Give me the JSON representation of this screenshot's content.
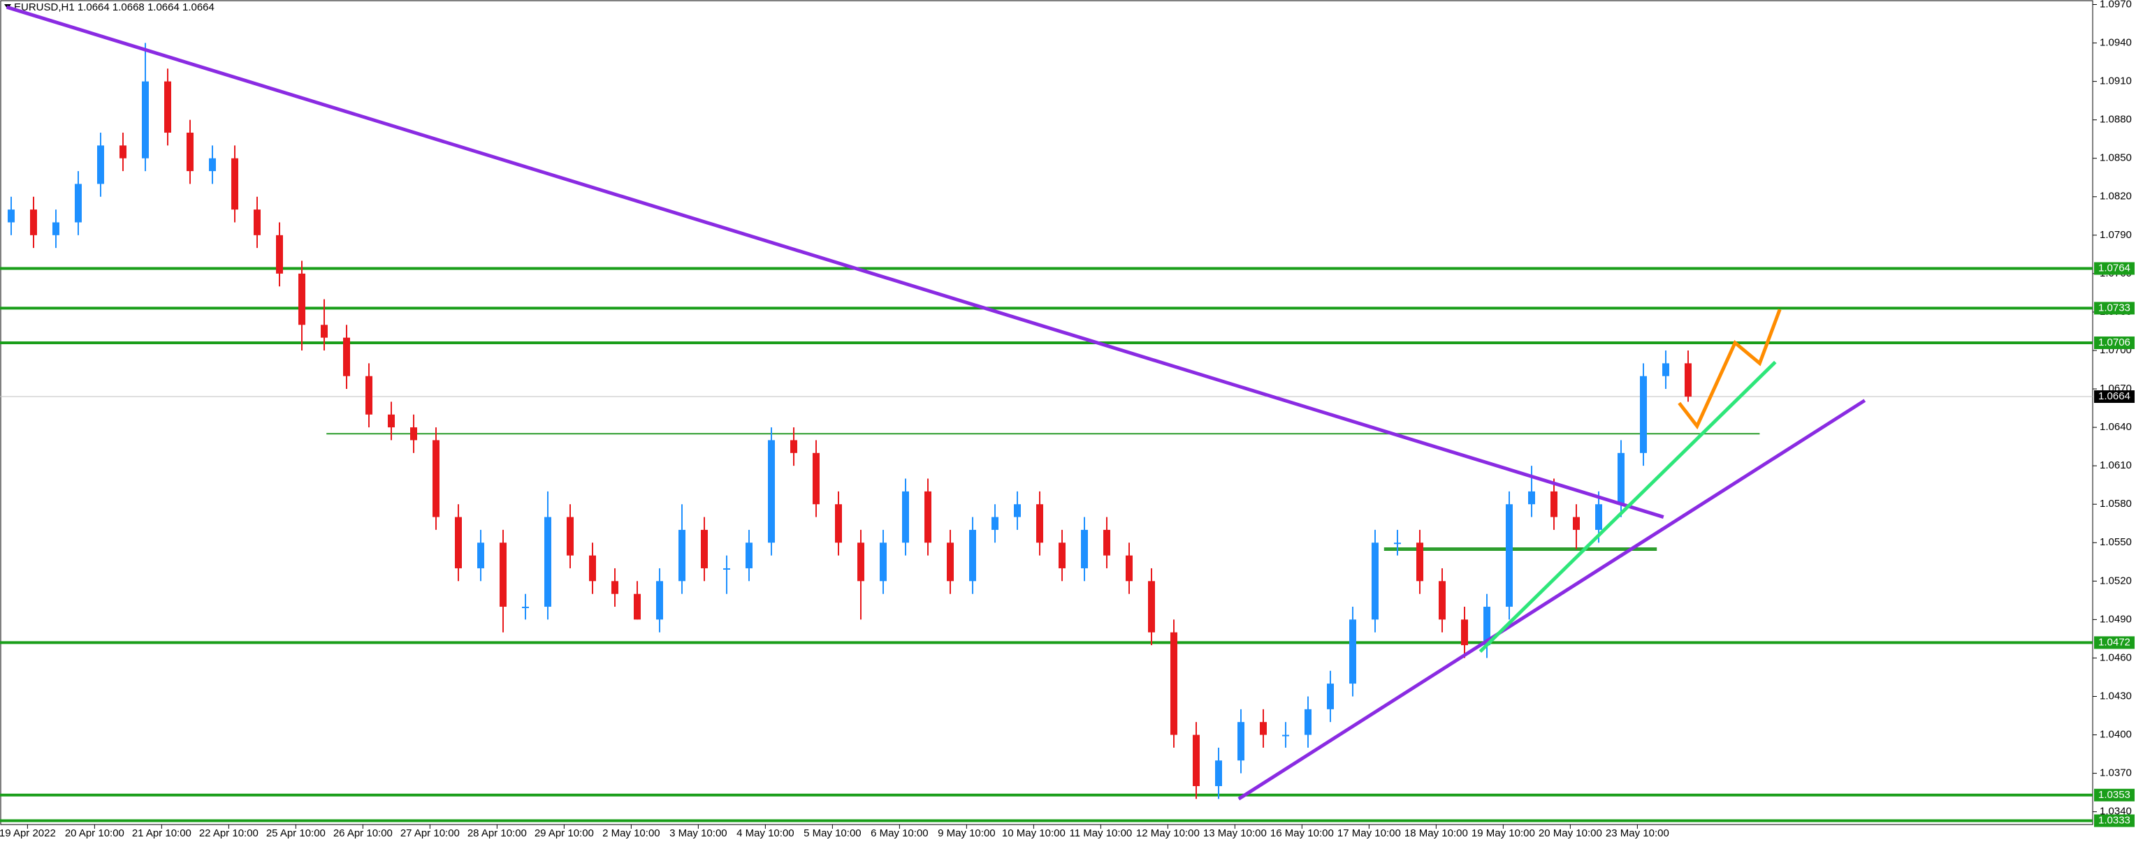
{
  "chart_data": {
    "type": "candlestick",
    "title": "EURUSD,H1  1.0664 1.0668 1.0664 1.0664",
    "up_color": "#1e90ff",
    "down_color": "#e8191c",
    "ylim": [
      1.033,
      1.0973
    ],
    "yticks": [
      {
        "value": 1.097,
        "label": "1.0970"
      },
      {
        "value": 1.094,
        "label": "1.0940"
      },
      {
        "value": 1.091,
        "label": "1.0910"
      },
      {
        "value": 1.088,
        "label": "1.0880"
      },
      {
        "value": 1.085,
        "label": "1.0850"
      },
      {
        "value": 1.082,
        "label": "1.0820"
      },
      {
        "value": 1.079,
        "label": "1.0790"
      },
      {
        "value": 1.076,
        "label": "1.0760"
      },
      {
        "value": 1.073,
        "label": "1.0730"
      },
      {
        "value": 1.07,
        "label": "1.0700"
      },
      {
        "value": 1.067,
        "label": "1.0670"
      },
      {
        "value": 1.064,
        "label": "1.0640"
      },
      {
        "value": 1.061,
        "label": "1.0610"
      },
      {
        "value": 1.058,
        "label": "1.0580"
      },
      {
        "value": 1.055,
        "label": "1.0550"
      },
      {
        "value": 1.052,
        "label": "1.0520"
      },
      {
        "value": 1.049,
        "label": "1.0490"
      },
      {
        "value": 1.046,
        "label": "1.0460"
      },
      {
        "value": 1.043,
        "label": "1.0430"
      },
      {
        "value": 1.04,
        "label": "1.0400"
      },
      {
        "value": 1.037,
        "label": "1.0370"
      },
      {
        "value": 1.034,
        "label": "1.0340"
      }
    ],
    "x_labels": [
      "19 Apr 2022",
      "20 Apr 10:00",
      "21 Apr 10:00",
      "22 Apr 10:00",
      "25 Apr 10:00",
      "26 Apr 10:00",
      "27 Apr 10:00",
      "28 Apr 10:00",
      "29 Apr 10:00",
      "2 May 10:00",
      "3 May 10:00",
      "4 May 10:00",
      "5 May 10:00",
      "6 May 10:00",
      "9 May 10:00",
      "10 May 10:00",
      "11 May 10:00",
      "12 May 10:00",
      "13 May 10:00",
      "16 May 10:00",
      "17 May 10:00",
      "18 May 10:00",
      "19 May 10:00",
      "20 May 10:00",
      "23 May 10:00"
    ],
    "ohlc": [
      [
        1.08,
        1.082,
        1.079,
        1.081
      ],
      [
        1.081,
        1.082,
        1.078,
        1.079
      ],
      [
        1.079,
        1.081,
        1.078,
        1.08
      ],
      [
        1.08,
        1.084,
        1.079,
        1.083
      ],
      [
        1.083,
        1.087,
        1.082,
        1.086
      ],
      [
        1.086,
        1.087,
        1.084,
        1.085
      ],
      [
        1.085,
        1.094,
        1.084,
        1.091
      ],
      [
        1.091,
        1.092,
        1.086,
        1.087
      ],
      [
        1.087,
        1.088,
        1.083,
        1.084
      ],
      [
        1.084,
        1.086,
        1.083,
        1.085
      ],
      [
        1.085,
        1.086,
        1.08,
        1.081
      ],
      [
        1.081,
        1.082,
        1.078,
        1.079
      ],
      [
        1.079,
        1.08,
        1.075,
        1.076
      ],
      [
        1.076,
        1.077,
        1.07,
        1.072
      ],
      [
        1.072,
        1.074,
        1.07,
        1.071
      ],
      [
        1.071,
        1.072,
        1.067,
        1.068
      ],
      [
        1.068,
        1.069,
        1.064,
        1.065
      ],
      [
        1.065,
        1.066,
        1.063,
        1.064
      ],
      [
        1.064,
        1.065,
        1.062,
        1.063
      ],
      [
        1.063,
        1.064,
        1.056,
        1.057
      ],
      [
        1.057,
        1.058,
        1.052,
        1.053
      ],
      [
        1.053,
        1.056,
        1.052,
        1.055
      ],
      [
        1.055,
        1.056,
        1.048,
        1.05
      ],
      [
        1.05,
        1.051,
        1.049,
        1.05
      ],
      [
        1.05,
        1.059,
        1.049,
        1.057
      ],
      [
        1.057,
        1.058,
        1.053,
        1.054
      ],
      [
        1.054,
        1.055,
        1.051,
        1.052
      ],
      [
        1.052,
        1.053,
        1.05,
        1.051
      ],
      [
        1.051,
        1.052,
        1.049,
        1.049
      ],
      [
        1.049,
        1.053,
        1.048,
        1.052
      ],
      [
        1.052,
        1.058,
        1.051,
        1.056
      ],
      [
        1.056,
        1.057,
        1.052,
        1.053
      ],
      [
        1.053,
        1.054,
        1.051,
        1.053
      ],
      [
        1.053,
        1.056,
        1.052,
        1.055
      ],
      [
        1.055,
        1.064,
        1.054,
        1.063
      ],
      [
        1.063,
        1.064,
        1.061,
        1.062
      ],
      [
        1.062,
        1.063,
        1.057,
        1.058
      ],
      [
        1.058,
        1.059,
        1.054,
        1.055
      ],
      [
        1.055,
        1.056,
        1.049,
        1.052
      ],
      [
        1.052,
        1.056,
        1.051,
        1.055
      ],
      [
        1.055,
        1.06,
        1.054,
        1.059
      ],
      [
        1.059,
        1.06,
        1.054,
        1.055
      ],
      [
        1.055,
        1.056,
        1.051,
        1.052
      ],
      [
        1.052,
        1.057,
        1.051,
        1.056
      ],
      [
        1.056,
        1.058,
        1.055,
        1.057
      ],
      [
        1.057,
        1.059,
        1.056,
        1.058
      ],
      [
        1.058,
        1.059,
        1.054,
        1.055
      ],
      [
        1.055,
        1.056,
        1.052,
        1.053
      ],
      [
        1.053,
        1.057,
        1.052,
        1.056
      ],
      [
        1.056,
        1.057,
        1.053,
        1.054
      ],
      [
        1.054,
        1.055,
        1.051,
        1.052
      ],
      [
        1.052,
        1.053,
        1.047,
        1.048
      ],
      [
        1.048,
        1.049,
        1.039,
        1.04
      ],
      [
        1.04,
        1.041,
        1.035,
        1.036
      ],
      [
        1.036,
        1.039,
        1.035,
        1.038
      ],
      [
        1.038,
        1.042,
        1.037,
        1.041
      ],
      [
        1.041,
        1.042,
        1.039,
        1.04
      ],
      [
        1.04,
        1.041,
        1.039,
        1.04
      ],
      [
        1.04,
        1.043,
        1.039,
        1.042
      ],
      [
        1.042,
        1.045,
        1.041,
        1.044
      ],
      [
        1.044,
        1.05,
        1.043,
        1.049
      ],
      [
        1.049,
        1.056,
        1.048,
        1.055
      ],
      [
        1.055,
        1.056,
        1.054,
        1.055
      ],
      [
        1.055,
        1.056,
        1.051,
        1.052
      ],
      [
        1.052,
        1.053,
        1.048,
        1.049
      ],
      [
        1.049,
        1.05,
        1.046,
        1.047
      ],
      [
        1.047,
        1.051,
        1.046,
        1.05
      ],
      [
        1.05,
        1.059,
        1.049,
        1.058
      ],
      [
        1.058,
        1.061,
        1.057,
        1.059
      ],
      [
        1.059,
        1.06,
        1.056,
        1.057
      ],
      [
        1.057,
        1.058,
        1.0545,
        1.056
      ],
      [
        1.056,
        1.059,
        1.055,
        1.058
      ],
      [
        1.058,
        1.063,
        1.057,
        1.062
      ],
      [
        1.062,
        1.069,
        1.061,
        1.068
      ],
      [
        1.068,
        1.07,
        1.067,
        1.069
      ],
      [
        1.069,
        1.07,
        1.066,
        1.0664
      ]
    ],
    "levels": [
      {
        "value": 1.0764,
        "color": "#1a9e1a"
      },
      {
        "value": 1.0733,
        "color": "#1a9e1a"
      },
      {
        "value": 1.0706,
        "color": "#1a9e1a"
      },
      {
        "value": 1.0472,
        "color": "#1a9e1a"
      },
      {
        "value": 1.0353,
        "color": "#1a9e1a"
      },
      {
        "value": 1.0333,
        "color": "#1a9e1a"
      }
    ],
    "segments": [
      {
        "value": 1.0635,
        "from": 14.1,
        "to": 78.2,
        "color": "#2e9e2e"
      },
      {
        "value": 1.0545,
        "from": 61.4,
        "to": 73.6,
        "color": "#2e9e2e"
      }
    ],
    "current_price": 1.0664,
    "trendlines": [
      {
        "color": "#8a2be2",
        "points": [
          [
            -0.2,
            1.0968
          ],
          [
            73.9,
            1.057
          ]
        ]
      },
      {
        "color": "#8a2be2",
        "points": [
          [
            54.9,
            1.035
          ],
          [
            82.9,
            1.0661
          ]
        ]
      },
      {
        "color": "#2ee67a",
        "points": [
          [
            65.7,
            1.0465
          ],
          [
            78.9,
            1.0691
          ]
        ]
      },
      {
        "color": "#ff8c00",
        "points": [
          [
            74.6,
            1.0659
          ],
          [
            75.4,
            1.0641
          ],
          [
            77.1,
            1.0706
          ],
          [
            78.2,
            1.069
          ],
          [
            79.1,
            1.0732
          ]
        ]
      }
    ]
  }
}
